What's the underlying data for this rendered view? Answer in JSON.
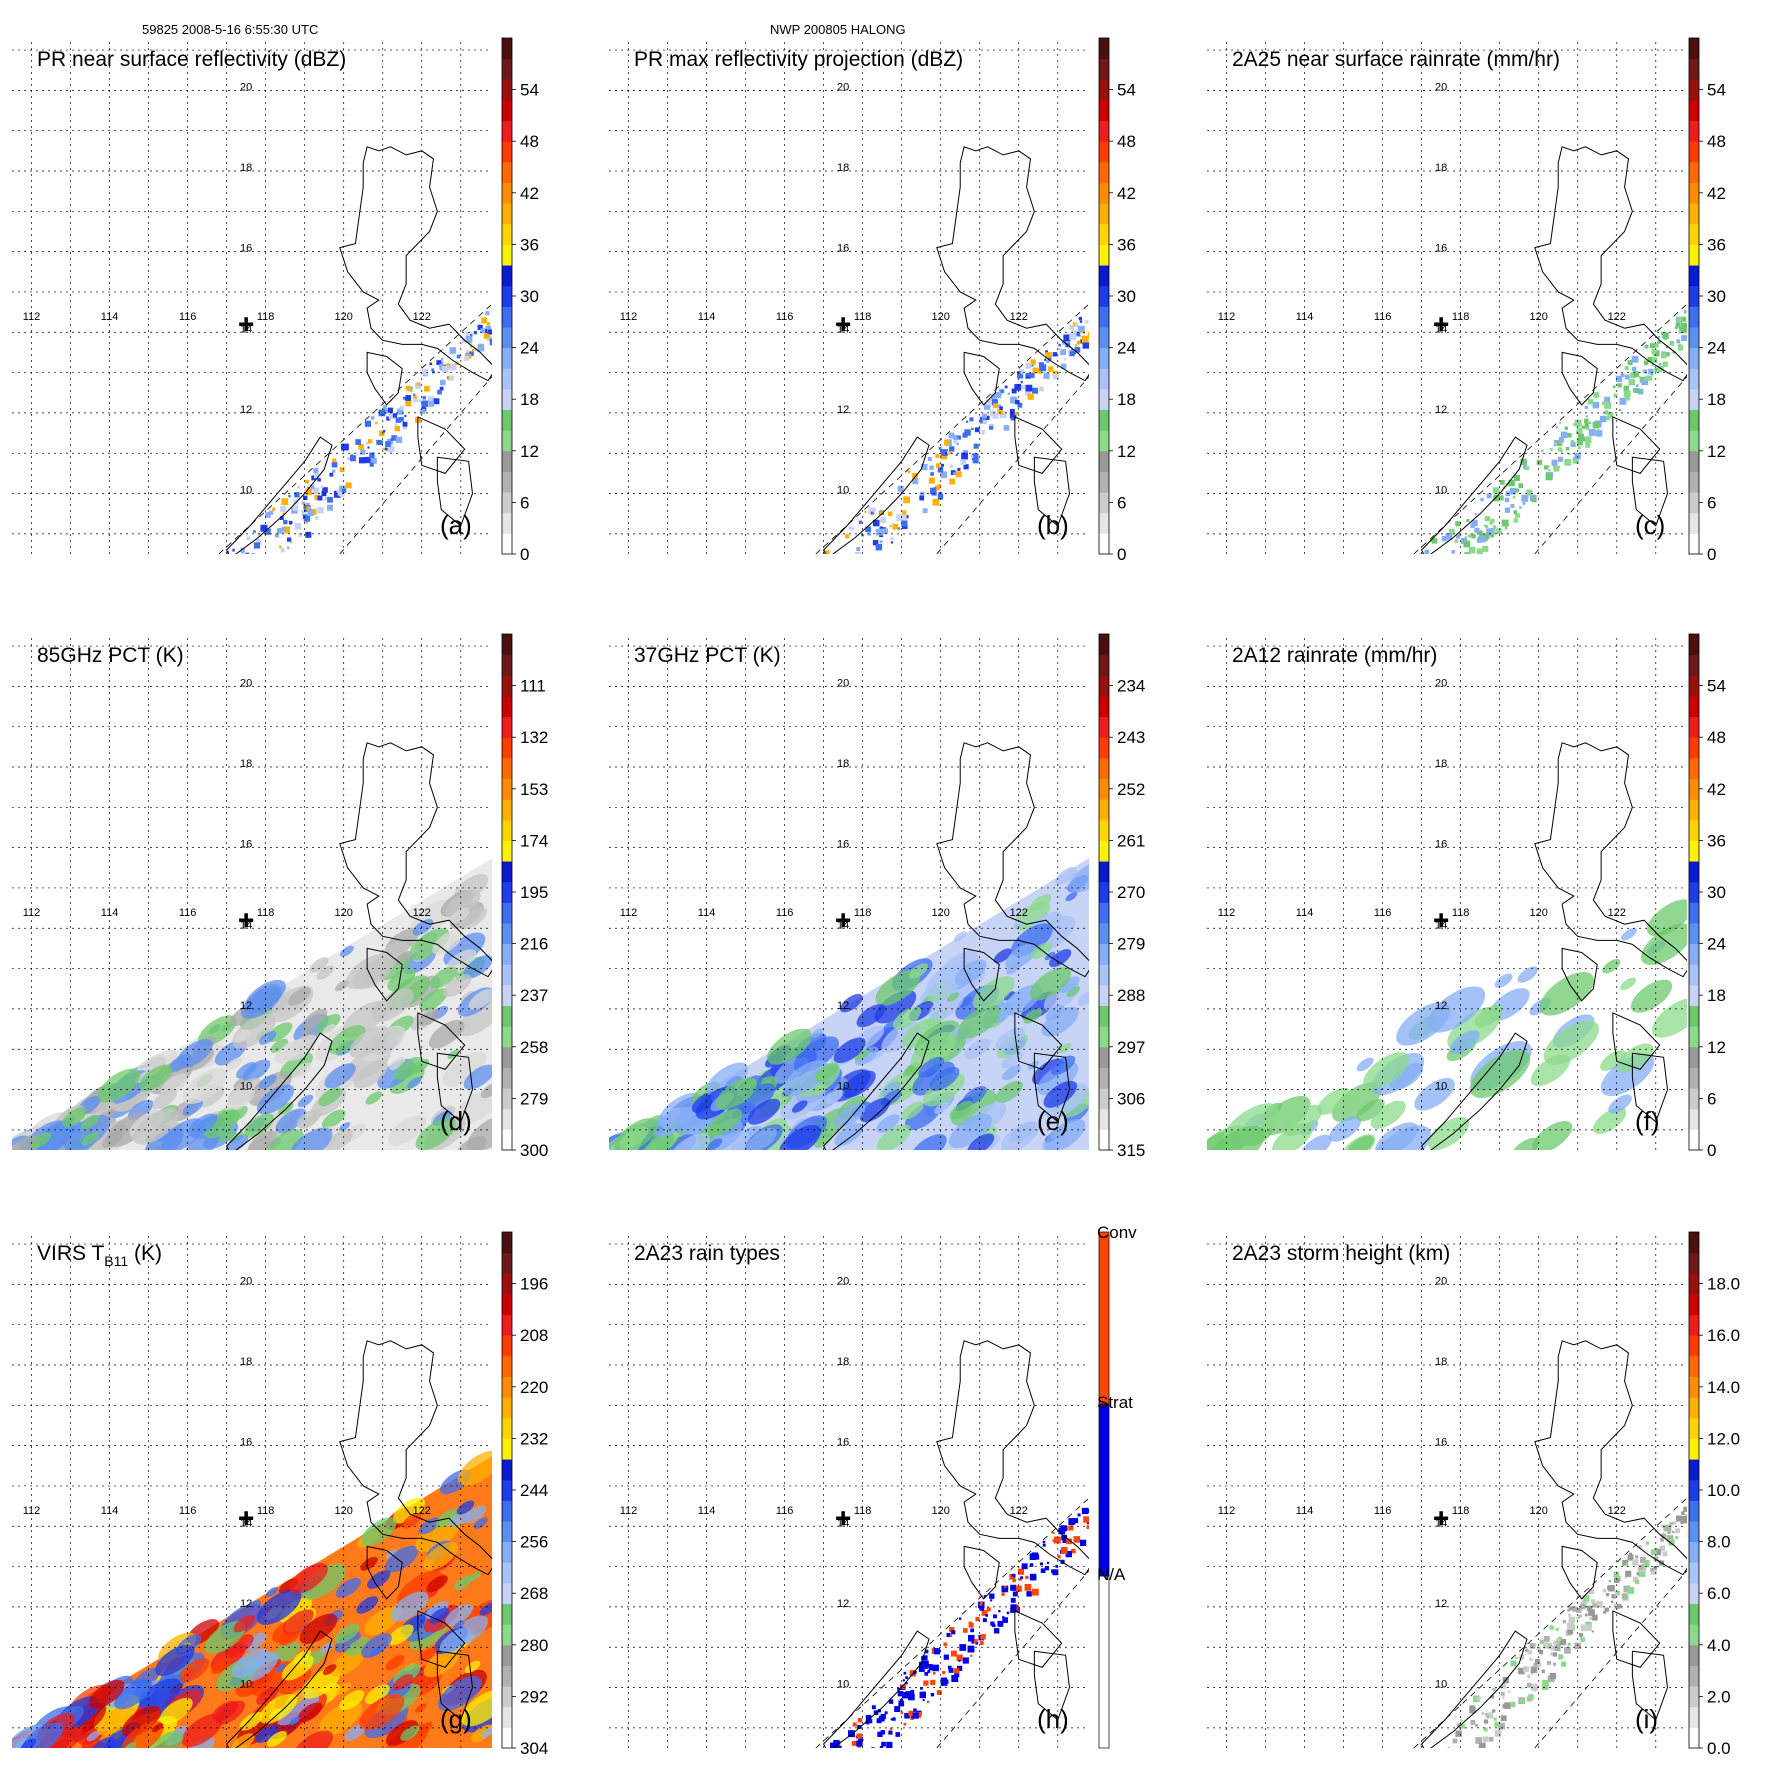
{
  "header": {
    "orbit_time": "59825 2008-5-16 6:55:30 UTC",
    "storm": "NWP 200805 HALONG"
  },
  "map": {
    "lon_ticks": [
      "112",
      "114",
      "116",
      "118",
      "120",
      "122"
    ],
    "lat_ticks": [
      "10",
      "12",
      "14",
      "16",
      "18",
      "20"
    ],
    "storm_center": {
      "lon": 117.5,
      "lat": 14.2
    },
    "extent": {
      "lon": [
        111.5,
        123.8
      ],
      "lat": [
        8.5,
        21.2
      ]
    },
    "swath_edge_lon_at_lat": {
      "lat_low": 8.5,
      "lat_high": 14.5
    }
  },
  "chart_data": [
    {
      "type": "heatmap",
      "panel": "(a)",
      "title": "PR near surface reflectivity (dBZ)",
      "colorbar_ticks": [
        "0",
        "6",
        "12",
        "18",
        "24",
        "30",
        "36",
        "42",
        "48",
        "54"
      ],
      "colorbar_range": [
        0,
        60
      ],
      "swath": "PR"
    },
    {
      "type": "heatmap",
      "panel": "(b)",
      "title": "PR max reflectivity projection (dBZ)",
      "colorbar_ticks": [
        "0",
        "6",
        "12",
        "18",
        "24",
        "30",
        "36",
        "42",
        "48",
        "54"
      ],
      "colorbar_range": [
        0,
        60
      ],
      "swath": "PR"
    },
    {
      "type": "heatmap",
      "panel": "(c)",
      "title": "2A25 near surface rainrate (mm/hr)",
      "colorbar_ticks": [
        "0",
        "6",
        "12",
        "18",
        "24",
        "30",
        "36",
        "42",
        "48",
        "54"
      ],
      "colorbar_range": [
        0,
        60
      ],
      "swath": "PR"
    },
    {
      "type": "heatmap",
      "panel": "(d)",
      "title": "85GHz PCT (K)",
      "colorbar_ticks": [
        "300",
        "279",
        "258",
        "237",
        "216",
        "195",
        "174",
        "153",
        "132",
        "111"
      ],
      "colorbar_range": [
        300,
        90
      ],
      "swath": "TMI"
    },
    {
      "type": "heatmap",
      "panel": "(e)",
      "title": "37GHz PCT (K)",
      "colorbar_ticks": [
        "315",
        "306",
        "297",
        "288",
        "279",
        "270",
        "261",
        "252",
        "243",
        "234"
      ],
      "colorbar_range": [
        315,
        225
      ],
      "swath": "TMI"
    },
    {
      "type": "heatmap",
      "panel": "(f)",
      "title": "2A12 rainrate (mm/hr)",
      "colorbar_ticks": [
        "0",
        "6",
        "12",
        "18",
        "24",
        "30",
        "36",
        "42",
        "48",
        "54"
      ],
      "colorbar_range": [
        0,
        60
      ],
      "swath": "TMI"
    },
    {
      "type": "heatmap",
      "panel": "(g)",
      "title": "VIRS T",
      "title_subscript": "B11",
      "title_suffix": " (K)",
      "colorbar_ticks": [
        "304",
        "292",
        "280",
        "268",
        "256",
        "244",
        "232",
        "220",
        "208",
        "196"
      ],
      "colorbar_range": [
        304,
        184
      ],
      "swath": "VIRS"
    },
    {
      "type": "heatmap",
      "panel": "(h)",
      "title": "2A23 rain types",
      "colorbar_ticks": [
        "N/A",
        "Strat",
        "Conv"
      ],
      "colorbar_categories": [
        "N/A",
        "Strat",
        "Conv"
      ],
      "swath": "PR"
    },
    {
      "type": "heatmap",
      "panel": "(i)",
      "title": "2A23 storm height (km)",
      "colorbar_ticks": [
        "0.0",
        "2.0",
        "4.0",
        "6.0",
        "8.0",
        "10.0",
        "12.0",
        "14.0",
        "16.0",
        "18.0"
      ],
      "colorbar_range": [
        0,
        20
      ],
      "swath": "PR"
    }
  ],
  "colorbar_colors": {
    "standard": [
      "#ffffff",
      "#e6e6e6",
      "#cccccc",
      "#b0b0b0",
      "#999999",
      "#8bd98b",
      "#6cc86c",
      "#c8d2f5",
      "#a9c2f7",
      "#86aef6",
      "#5b8ff0",
      "#3d6df0",
      "#1e3ce8",
      "#0a1ad0",
      "#fff200",
      "#ffd400",
      "#ffb000",
      "#ff8c00",
      "#ff6a00",
      "#ff3c00",
      "#ee1c1c",
      "#cc0000",
      "#9b0f0f",
      "#701818",
      "#4a1010"
    ],
    "rain_types": [
      "#ffffff",
      "#0000e6",
      "#ff4500"
    ]
  }
}
